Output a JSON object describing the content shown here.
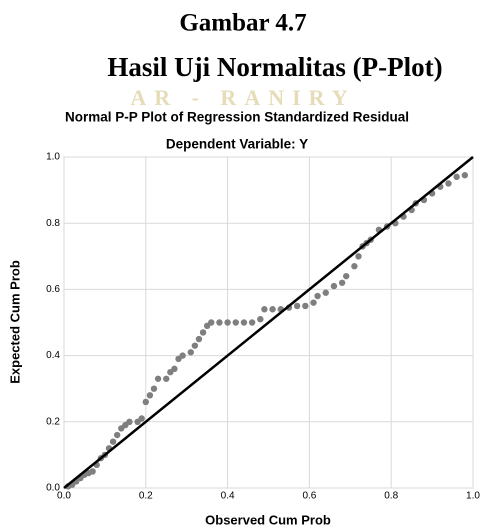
{
  "figure": {
    "label": "Gambar 4.7",
    "caption": "Hasil Uji Normalitas (P-Plot)",
    "watermark": "AR - RANIRY"
  },
  "chart_data": {
    "type": "scatter",
    "title": "Normal P-P Plot of Regression Standardized Residual",
    "subtitle": "Dependent Variable: Y",
    "x_label": "Observed Cum Prob",
    "y_label": "Expected Cum Prob",
    "xlim": [
      0,
      1
    ],
    "ylim": [
      0,
      1
    ],
    "xticks": [
      {
        "value": 0,
        "label": "0.0"
      },
      {
        "value": 0.2,
        "label": "0.2"
      },
      {
        "value": 0.4,
        "label": "0.4"
      },
      {
        "value": 0.6,
        "label": "0.6"
      },
      {
        "value": 0.8,
        "label": "0.8"
      },
      {
        "value": 1,
        "label": "1.0"
      }
    ],
    "yticks": [
      {
        "value": 0,
        "label": "0.0"
      },
      {
        "value": 0.2,
        "label": "0.2"
      },
      {
        "value": 0.4,
        "label": "0.4"
      },
      {
        "value": 0.6,
        "label": "0.6"
      },
      {
        "value": 0.8,
        "label": "0.8"
      },
      {
        "value": 1,
        "label": "1.0"
      }
    ],
    "grid": true,
    "color": "#7f7f7f",
    "line_color": "#000000",
    "x": [
      0.01,
      0.02,
      0.03,
      0.04,
      0.05,
      0.06,
      0.07,
      0.08,
      0.09,
      0.1,
      0.11,
      0.12,
      0.13,
      0.14,
      0.15,
      0.16,
      0.18,
      0.19,
      0.2,
      0.21,
      0.22,
      0.23,
      0.25,
      0.26,
      0.27,
      0.28,
      0.29,
      0.31,
      0.32,
      0.33,
      0.34,
      0.35,
      0.36,
      0.38,
      0.4,
      0.42,
      0.44,
      0.46,
      0.48,
      0.49,
      0.51,
      0.53,
      0.55,
      0.57,
      0.59,
      0.61,
      0.62,
      0.64,
      0.66,
      0.68,
      0.69,
      0.71,
      0.72,
      0.73,
      0.74,
      0.75,
      0.77,
      0.79,
      0.81,
      0.83,
      0.85,
      0.86,
      0.88,
      0.9,
      0.92,
      0.94,
      0.96,
      0.98
    ],
    "values": [
      0.005,
      0.01,
      0.02,
      0.03,
      0.04,
      0.045,
      0.05,
      0.07,
      0.09,
      0.1,
      0.12,
      0.14,
      0.16,
      0.18,
      0.19,
      0.2,
      0.2,
      0.21,
      0.26,
      0.28,
      0.3,
      0.33,
      0.33,
      0.35,
      0.36,
      0.39,
      0.4,
      0.41,
      0.43,
      0.45,
      0.47,
      0.49,
      0.5,
      0.5,
      0.5,
      0.5,
      0.5,
      0.5,
      0.51,
      0.54,
      0.54,
      0.54,
      0.545,
      0.55,
      0.55,
      0.56,
      0.58,
      0.59,
      0.61,
      0.62,
      0.64,
      0.67,
      0.7,
      0.73,
      0.74,
      0.75,
      0.78,
      0.79,
      0.8,
      0.82,
      0.84,
      0.86,
      0.87,
      0.89,
      0.91,
      0.92,
      0.94,
      0.945
    ]
  }
}
